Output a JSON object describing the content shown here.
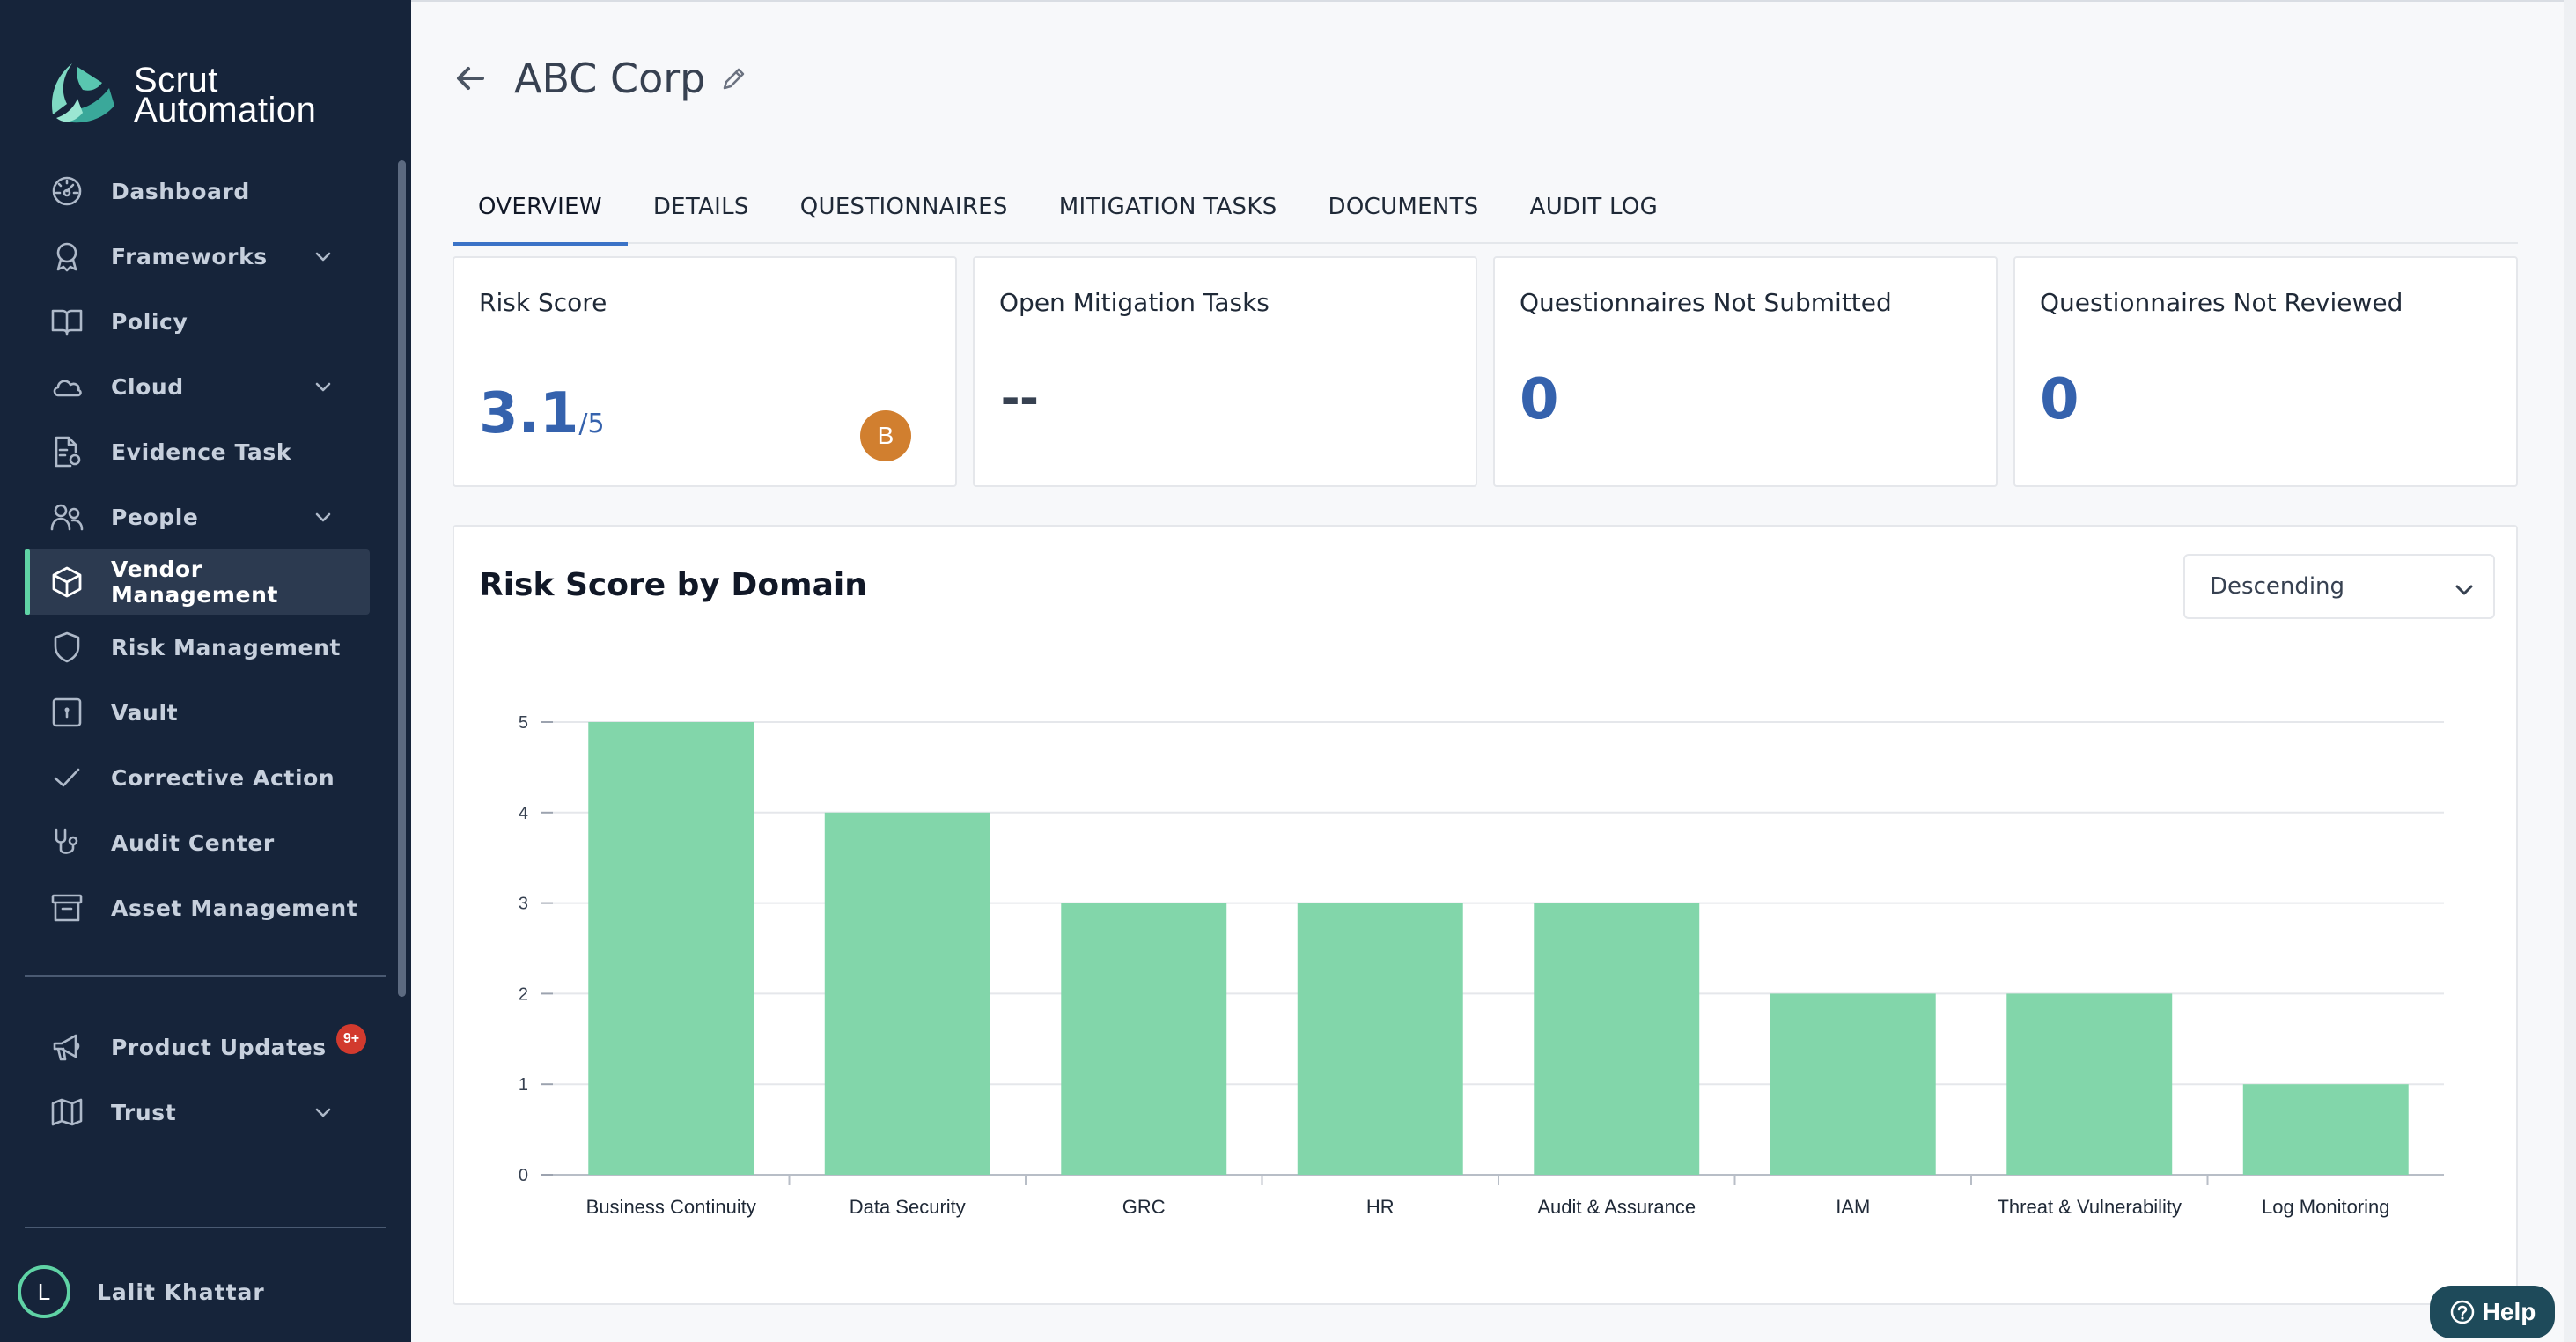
{
  "brand": {
    "line1": "Scrut",
    "line2": "Automation"
  },
  "sidebar": {
    "items": [
      {
        "label": "Dashboard",
        "icon": "dashboard-icon",
        "chevron": false,
        "active": false
      },
      {
        "label": "Frameworks",
        "icon": "award-icon",
        "chevron": true,
        "active": false
      },
      {
        "label": "Policy",
        "icon": "book-icon",
        "chevron": false,
        "active": false
      },
      {
        "label": "Cloud",
        "icon": "cloud-icon",
        "chevron": true,
        "active": false
      },
      {
        "label": "Evidence Task",
        "icon": "document-gear-icon",
        "chevron": false,
        "active": false
      },
      {
        "label": "People",
        "icon": "people-icon",
        "chevron": true,
        "active": false
      },
      {
        "label": "Vendor Management",
        "icon": "box-icon",
        "chevron": false,
        "active": true
      },
      {
        "label": "Risk Management",
        "icon": "shield-icon",
        "chevron": false,
        "active": false
      },
      {
        "label": "Vault",
        "icon": "vault-icon",
        "chevron": false,
        "active": false
      },
      {
        "label": "Corrective Action",
        "icon": "check-icon",
        "chevron": false,
        "active": false
      },
      {
        "label": "Audit Center",
        "icon": "stethoscope-icon",
        "chevron": false,
        "active": false
      },
      {
        "label": "Asset Management",
        "icon": "archive-icon",
        "chevron": false,
        "active": false
      }
    ],
    "bottom_items": [
      {
        "label": "Product Updates",
        "icon": "megaphone-icon",
        "chevron": false,
        "badge": "9+"
      },
      {
        "label": "Trust",
        "icon": "trust-icon",
        "chevron": true
      }
    ],
    "user": {
      "initial": "L",
      "name": "Lalit Khattar"
    }
  },
  "page": {
    "title": "ABC Corp"
  },
  "tabs": [
    {
      "label": "OVERVIEW",
      "active": true
    },
    {
      "label": "DETAILS",
      "active": false
    },
    {
      "label": "QUESTIONNAIRES",
      "active": false
    },
    {
      "label": "MITIGATION TASKS",
      "active": false
    },
    {
      "label": "DOCUMENTS",
      "active": false
    },
    {
      "label": "AUDIT LOG",
      "active": false
    }
  ],
  "cards": {
    "risk_score": {
      "title": "Risk Score",
      "value": "3.1",
      "out_of": "/5",
      "grade": "B"
    },
    "open_tasks": {
      "title": "Open Mitigation Tasks",
      "value": "--"
    },
    "not_submitted": {
      "title": "Questionnaires Not Submitted",
      "value": "0"
    },
    "not_reviewed": {
      "title": "Questionnaires Not Reviewed",
      "value": "0"
    }
  },
  "chart_panel": {
    "title": "Risk Score by Domain",
    "sort_value": "Descending"
  },
  "chart_data": {
    "type": "bar",
    "categories": [
      "Business Continuity",
      "Data Security",
      "GRC",
      "HR",
      "Audit & Assurance",
      "IAM",
      "Threat & Vulnerability",
      "Log Monitoring"
    ],
    "values": [
      5,
      4,
      3,
      3,
      3,
      2,
      2,
      1
    ],
    "yticks": [
      0,
      1,
      2,
      3,
      4,
      5
    ],
    "ylim": [
      0,
      5
    ],
    "grid": true,
    "bar_color": "#82d6aa"
  },
  "help": {
    "label": "Help"
  },
  "colors": {
    "sidebar_bg": "#16243a",
    "accent": "#5fd3a5",
    "value_blue": "#3562ad",
    "grade_orange": "#d17f2f",
    "badge_red": "#d23a2e"
  }
}
